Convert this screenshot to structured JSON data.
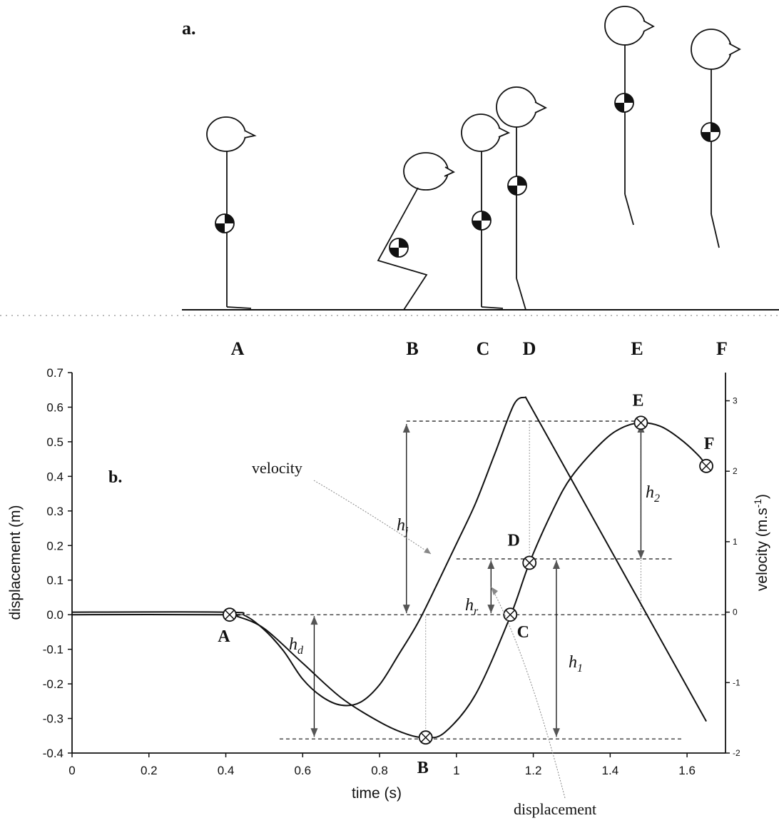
{
  "panel_a": {
    "title": "a.",
    "positions": [
      "A",
      "B",
      "C",
      "D",
      "E",
      "F"
    ]
  },
  "panel_b": {
    "title": "b."
  },
  "chart_data": {
    "type": "line",
    "xlabel": "time (s)",
    "ylabel": "displacement (m)",
    "y2label": "velocity (m.s-1)",
    "xlim": [
      0,
      1.7
    ],
    "ylim": [
      -0.4,
      0.7
    ],
    "y2lim": [
      -2,
      3.4
    ],
    "x_ticks": [
      "0",
      "0.2",
      "0.4",
      "0.6",
      "0.8",
      "1",
      "1.2",
      "1.4",
      "1.6"
    ],
    "y_ticks": [
      "-0.4",
      "-0.3",
      "-0.2",
      "-0.1",
      "0.0",
      "0.1",
      "0.2",
      "0.3",
      "0.4",
      "0.5",
      "0.6",
      "0.7"
    ],
    "y2_ticks": [
      "-2",
      "-1",
      "0",
      "1",
      "2",
      "3"
    ],
    "series": [
      {
        "name": "displacement",
        "x": [
          0,
          0.4,
          0.43,
          0.5,
          0.6,
          0.7,
          0.8,
          0.87,
          0.92,
          0.97,
          1.05,
          1.14,
          1.19,
          1.25,
          1.3,
          1.38,
          1.43,
          1.48,
          1.53,
          1.58,
          1.63,
          1.65
        ],
        "y": [
          0,
          0,
          -0.005,
          -0.04,
          -0.14,
          -0.24,
          -0.31,
          -0.345,
          -0.355,
          -0.34,
          -0.23,
          -0.005,
          0.15,
          0.3,
          0.4,
          0.5,
          0.54,
          0.555,
          0.545,
          0.51,
          0.46,
          0.43
        ]
      },
      {
        "name": "velocity",
        "x": [
          0,
          0.4,
          0.45,
          0.5,
          0.55,
          0.6,
          0.65,
          0.7,
          0.75,
          0.8,
          0.85,
          0.9,
          0.95,
          1.0,
          1.05,
          1.1,
          1.15,
          1.18,
          1.25,
          1.35,
          1.45,
          1.5,
          1.55,
          1.6,
          1.65
        ],
        "y": [
          0,
          0,
          -0.05,
          -0.25,
          -0.55,
          -0.95,
          -1.2,
          -1.32,
          -1.28,
          -1.03,
          -0.6,
          -0.15,
          0.4,
          0.97,
          1.55,
          2.25,
          2.95,
          3.05,
          2.4,
          1.5,
          0.55,
          0.05,
          -0.45,
          -0.95,
          -1.55
        ]
      }
    ],
    "points": [
      {
        "label": "A",
        "x": 0.41,
        "y": 0.0
      },
      {
        "label": "B",
        "x": 0.92,
        "y": -0.355
      },
      {
        "label": "C",
        "x": 1.14,
        "y": 0.0
      },
      {
        "label": "D",
        "x": 1.19,
        "y": 0.15
      },
      {
        "label": "E",
        "x": 1.48,
        "y": 0.555
      },
      {
        "label": "F",
        "x": 1.65,
        "y": 0.43
      }
    ],
    "annotations": {
      "velocity_label": "velocity",
      "displacement_label": "displacement",
      "hj": "h",
      "hj_sub": "j",
      "hr": "h",
      "hr_sub": "r",
      "hd": "h",
      "hd_sub": "d",
      "h1": "h",
      "h1_sub": "1",
      "h2": "h",
      "h2_sub": "2"
    },
    "grid": false
  }
}
